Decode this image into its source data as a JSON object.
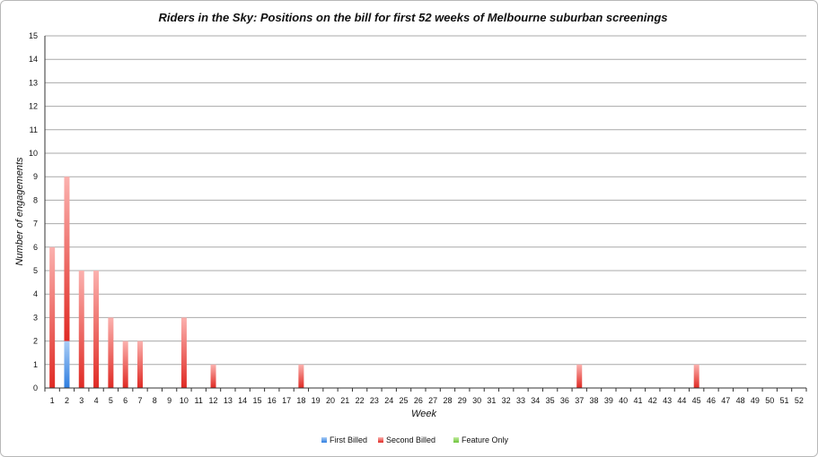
{
  "chart_data": {
    "type": "bar",
    "stacked": true,
    "title": "Riders in the Sky: Positions on the bill for first 52 weeks of Melbourne suburban screenings",
    "xlabel": "Week",
    "ylabel": "Number of engagements",
    "ylim": [
      0,
      15
    ],
    "yticks": [
      "0",
      "1",
      "2",
      "3",
      "4",
      "5",
      "6",
      "7",
      "8",
      "9",
      "10",
      "11",
      "12",
      "13",
      "14",
      "15"
    ],
    "categories": [
      "1",
      "2",
      "3",
      "4",
      "5",
      "6",
      "7",
      "8",
      "9",
      "10",
      "11",
      "12",
      "13",
      "14",
      "15",
      "16",
      "17",
      "18",
      "19",
      "20",
      "21",
      "22",
      "23",
      "24",
      "25",
      "26",
      "27",
      "28",
      "29",
      "30",
      "31",
      "32",
      "33",
      "34",
      "35",
      "36",
      "37",
      "38",
      "39",
      "40",
      "41",
      "42",
      "43",
      "44",
      "45",
      "46",
      "47",
      "48",
      "49",
      "50",
      "51",
      "52"
    ],
    "grid": true,
    "legend_position": "bottom",
    "series": [
      {
        "name": "First Billed",
        "color": "#5b9be0",
        "values": [
          0,
          2,
          0,
          0,
          0,
          0,
          0,
          0,
          0,
          0,
          0,
          0,
          0,
          0,
          0,
          0,
          0,
          0,
          0,
          0,
          0,
          0,
          0,
          0,
          0,
          0,
          0,
          0,
          0,
          0,
          0,
          0,
          0,
          0,
          0,
          0,
          0,
          0,
          0,
          0,
          0,
          0,
          0,
          0,
          0,
          0,
          0,
          0,
          0,
          0,
          0,
          0
        ]
      },
      {
        "name": "Second Billed",
        "color": "#e8413c",
        "values": [
          6,
          7,
          5,
          5,
          3,
          2,
          2,
          0,
          0,
          3,
          0,
          1,
          0,
          0,
          0,
          0,
          0,
          1,
          0,
          0,
          0,
          0,
          0,
          0,
          0,
          0,
          0,
          0,
          0,
          0,
          0,
          0,
          0,
          0,
          0,
          0,
          1,
          0,
          0,
          0,
          0,
          0,
          0,
          0,
          1,
          0,
          0,
          0,
          0,
          0,
          0,
          0
        ]
      },
      {
        "name": "Feature Only",
        "color": "#8fd14f",
        "values": [
          0,
          0,
          0,
          0,
          0,
          0,
          0,
          0,
          0,
          0,
          0,
          0,
          0,
          0,
          0,
          0,
          0,
          0,
          0,
          0,
          0,
          0,
          0,
          0,
          0,
          0,
          0,
          0,
          0,
          0,
          0,
          0,
          0,
          0,
          0,
          0,
          0,
          0,
          0,
          0,
          0,
          0,
          0,
          0,
          0,
          0,
          0,
          0,
          0,
          0,
          0,
          0
        ]
      }
    ]
  }
}
